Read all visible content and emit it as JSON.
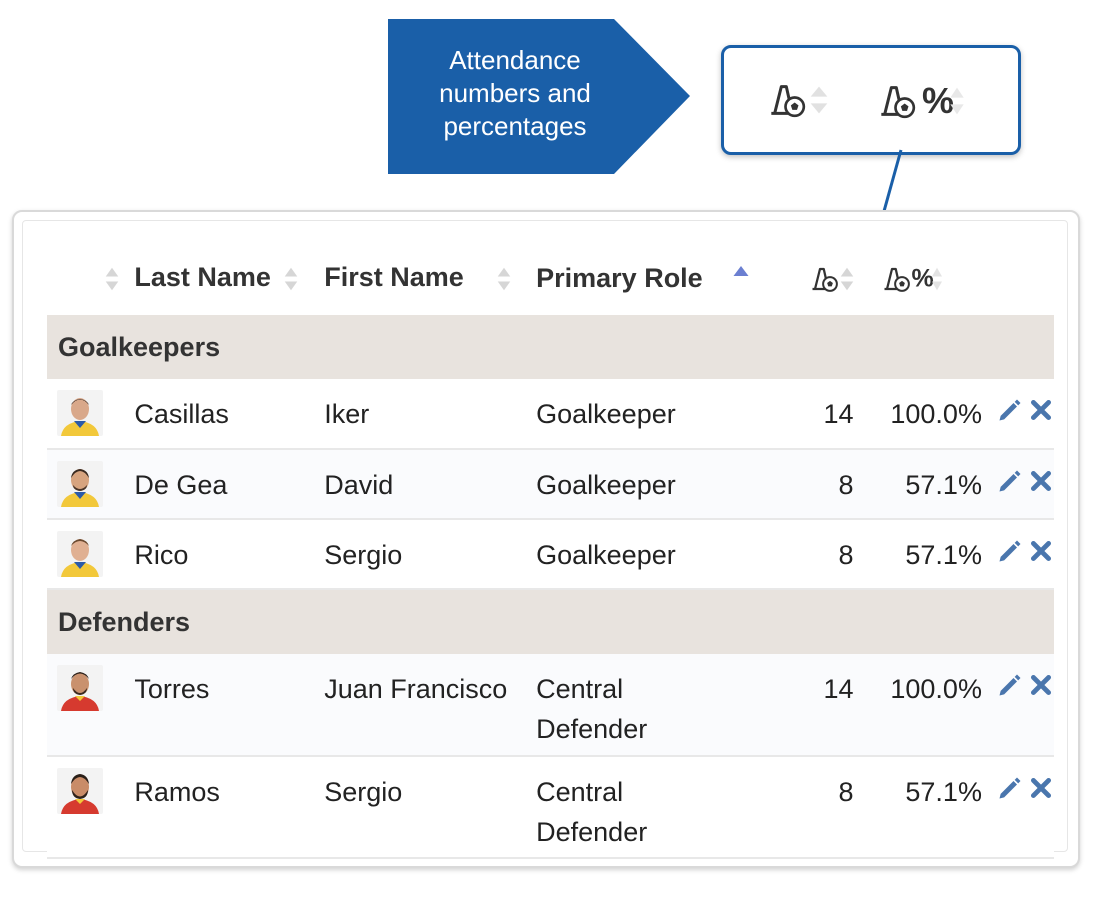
{
  "callout": {
    "lines": [
      "Attendance",
      "numbers and",
      "percentages"
    ]
  },
  "zoom": {
    "attendance_icon": "cone-ball-icon",
    "percent_label": "%"
  },
  "colors": {
    "callout_bg": "#1a5fa8",
    "group_bg": "#e8e3de",
    "action_blue": "#4a76ad",
    "sort_active": "#6b7fd1"
  },
  "table": {
    "headers": {
      "last_name": "Last Name",
      "first_name": "First Name",
      "primary_role": "Primary Role",
      "attendance_percent": "%"
    },
    "groups": [
      {
        "name": "Goalkeepers",
        "rows": [
          {
            "last": "Casillas",
            "first": "Iker",
            "role": "Goalkeeper",
            "attendance": "14",
            "percent": "100.0%",
            "kit": "yellow"
          },
          {
            "last": "De Gea",
            "first": "David",
            "role": "Goalkeeper",
            "attendance": "8",
            "percent": "57.1%",
            "kit": "yellow"
          },
          {
            "last": "Rico",
            "first": "Sergio",
            "role": "Goalkeeper",
            "attendance": "8",
            "percent": "57.1%",
            "kit": "yellow"
          }
        ]
      },
      {
        "name": "Defenders",
        "rows": [
          {
            "last": "Torres",
            "first": "Juan Francisco",
            "role_line1": "Central",
            "role_line2": "Defender",
            "attendance": "14",
            "percent": "100.0%",
            "kit": "red"
          },
          {
            "last": "Ramos",
            "first": "Sergio",
            "role_line1": "Central",
            "role_line2": "Defender",
            "attendance": "8",
            "percent": "57.1%",
            "kit": "red"
          }
        ]
      }
    ]
  }
}
